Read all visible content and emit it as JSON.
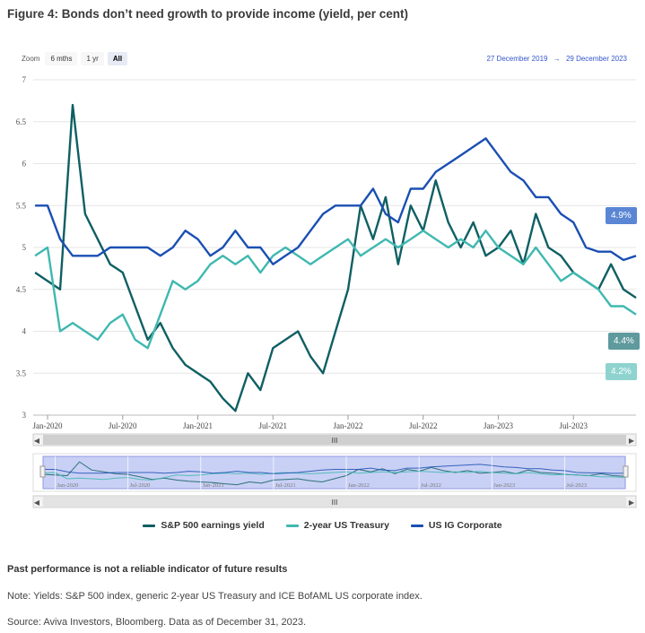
{
  "title": "Figure 4: Bonds don’t need growth to provide income (yield, per cent)",
  "zoom": {
    "label": "Zoom",
    "buttons": [
      "6 mths",
      "1 yr",
      "All"
    ],
    "active": "All"
  },
  "range": {
    "from": "27 December 2019",
    "arrow": "→",
    "to": "29 December 2023"
  },
  "scrollbar_grip": "III",
  "navigator_ticks": [
    "Jan-2020",
    "Jul-2020",
    "Jan-2021",
    "Jul-2021",
    "Jan-2022",
    "Jul-2022",
    "Jan-2023",
    "Jul-2023"
  ],
  "badges": {
    "corp": "4.9%",
    "sp": "4.4%",
    "treasury": "4.2%"
  },
  "footer": {
    "disclaimer": "Past performance is not a reliable indicator of future results",
    "note": "Note: Yields: S&P 500 index, generic 2-year US Treasury and ICE BofAML US corporate index.",
    "source": "Source: Aviva Investors, Bloomberg. Data as of December 31, 2023."
  },
  "colors": {
    "sp": "#0f5f63",
    "treasury": "#3fb8b0",
    "corp": "#1a4fb3"
  },
  "chart_data": {
    "type": "line",
    "title": "Figure 4: Bonds don’t need growth to provide income (yield, per cent)",
    "xlabel": "",
    "ylabel": "",
    "ylim": [
      3,
      7
    ],
    "yticks": [
      "3",
      "3.5",
      "4",
      "4.5",
      "5",
      "5.5",
      "6",
      "6.5",
      "7"
    ],
    "xticks": [
      "Jan-2020",
      "Jul-2020",
      "Jan-2021",
      "Jul-2021",
      "Jan-2022",
      "Jul-2022",
      "Jan-2023",
      "Jul-2023"
    ],
    "x": [
      "2019-12",
      "2020-01",
      "2020-02",
      "2020-03",
      "2020-04",
      "2020-05",
      "2020-06",
      "2020-07",
      "2020-08",
      "2020-09",
      "2020-10",
      "2020-11",
      "2020-12",
      "2021-01",
      "2021-02",
      "2021-03",
      "2021-04",
      "2021-05",
      "2021-06",
      "2021-07",
      "2021-08",
      "2021-09",
      "2021-10",
      "2021-11",
      "2021-12",
      "2022-01",
      "2022-02",
      "2022-03",
      "2022-04",
      "2022-05",
      "2022-06",
      "2022-07",
      "2022-08",
      "2022-09",
      "2022-10",
      "2022-11",
      "2022-12",
      "2023-01",
      "2023-02",
      "2023-03",
      "2023-04",
      "2023-05",
      "2023-06",
      "2023-07",
      "2023-08",
      "2023-09",
      "2023-10",
      "2023-11",
      "2023-12"
    ],
    "series": [
      {
        "name": "S&P 500 earnings yield",
        "values": [
          4.7,
          4.6,
          4.5,
          6.7,
          5.4,
          5.1,
          4.8,
          4.7,
          4.3,
          3.9,
          4.1,
          3.8,
          3.6,
          3.5,
          3.4,
          3.2,
          3.05,
          3.5,
          3.3,
          3.8,
          3.9,
          4.0,
          3.7,
          3.5,
          4.0,
          4.5,
          5.5,
          5.1,
          5.6,
          4.8,
          5.5,
          5.2,
          5.8,
          5.3,
          5.0,
          5.3,
          4.9,
          5.0,
          5.2,
          4.8,
          5.4,
          5.0,
          4.9,
          4.7,
          4.6,
          4.5,
          4.8,
          4.5,
          4.4
        ]
      },
      {
        "name": "2-year US Treasury",
        "values": [
          4.9,
          5.0,
          4.0,
          4.1,
          4.0,
          3.9,
          4.1,
          4.2,
          3.9,
          3.8,
          4.2,
          4.6,
          4.5,
          4.6,
          4.8,
          4.9,
          4.8,
          4.9,
          4.7,
          4.9,
          5.0,
          4.9,
          4.8,
          4.9,
          5.0,
          5.1,
          4.9,
          5.0,
          5.1,
          5.0,
          5.1,
          5.2,
          5.1,
          5.0,
          5.1,
          5.0,
          5.2,
          5.0,
          4.9,
          4.8,
          5.0,
          4.8,
          4.6,
          4.7,
          4.6,
          4.5,
          4.3,
          4.3,
          4.2
        ]
      },
      {
        "name": "US IG Corporate",
        "values": [
          5.5,
          5.5,
          5.1,
          4.9,
          4.9,
          4.9,
          5.0,
          5.0,
          5.0,
          5.0,
          4.9,
          5.0,
          5.2,
          5.1,
          4.9,
          5.0,
          5.2,
          5.0,
          5.0,
          4.8,
          4.9,
          5.0,
          5.2,
          5.4,
          5.5,
          5.5,
          5.5,
          5.7,
          5.4,
          5.3,
          5.7,
          5.7,
          5.9,
          6.0,
          6.1,
          6.2,
          6.3,
          6.1,
          5.9,
          5.8,
          5.6,
          5.6,
          5.4,
          5.3,
          5.0,
          4.95,
          4.95,
          4.85,
          4.9
        ]
      }
    ]
  }
}
